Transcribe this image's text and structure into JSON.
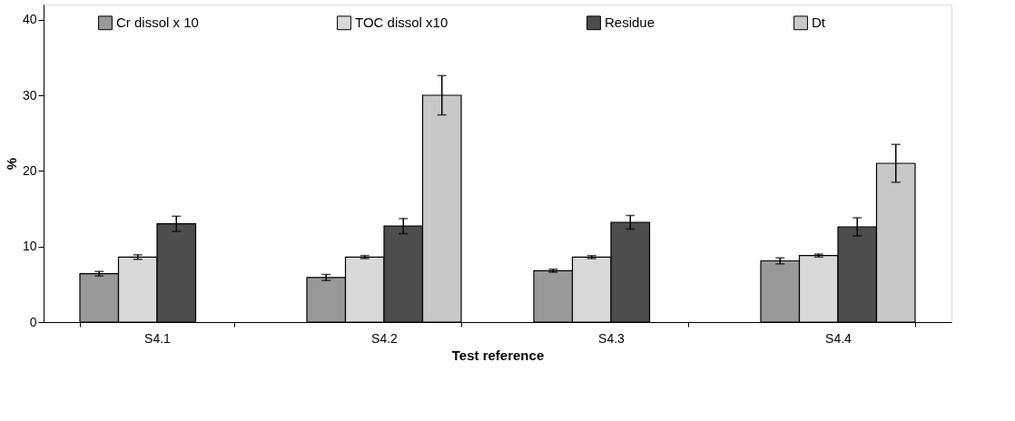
{
  "chart_data": {
    "type": "bar",
    "xlabel": "Test reference",
    "ylabel": "%",
    "categories": [
      "S4.1",
      "S4.2",
      "S4.3",
      "S4.4"
    ],
    "series": [
      {
        "name": "Cr dissol x 10",
        "color": "#999999",
        "values": [
          6.4,
          5.9,
          6.8,
          8.1
        ],
        "errors": [
          0.3,
          0.4,
          0.2,
          0.4
        ]
      },
      {
        "name": "TOC dissol x10",
        "color": "#d9d9d9",
        "values": [
          8.6,
          8.6,
          8.6,
          8.8
        ],
        "errors": [
          0.3,
          0.2,
          0.2,
          0.2
        ]
      },
      {
        "name": "Residue",
        "color": "#4d4d4d",
        "values": [
          13.0,
          12.7,
          13.2,
          12.6
        ],
        "errors": [
          1.0,
          1.0,
          0.9,
          1.2
        ]
      },
      {
        "name": "Dt",
        "color": "#c8c8c8",
        "values": [
          null,
          30.0,
          null,
          21.0
        ],
        "errors": [
          null,
          2.6,
          null,
          2.5
        ]
      }
    ],
    "ylim": [
      0,
      42
    ],
    "yticks": [
      0,
      10,
      20,
      30,
      40
    ],
    "grid": false,
    "legend": "top"
  }
}
